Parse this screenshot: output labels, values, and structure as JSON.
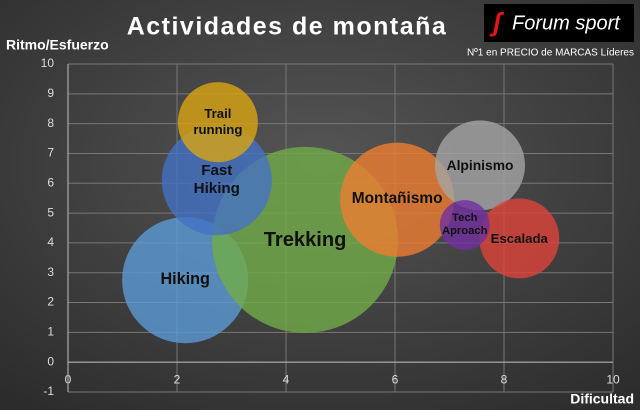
{
  "chart_data": {
    "type": "bubble",
    "title": "Actividades de montaña",
    "brand": "Forum sport",
    "tagline": "Nº1 en PRECIO de MARCAS Líderes",
    "x_label": "Dificultad",
    "y_label": "Ritmo/Esfuerzo",
    "xlim": [
      0,
      10
    ],
    "xticks": [
      0,
      2,
      4,
      6,
      8,
      10
    ],
    "ylim": [
      -1,
      10
    ],
    "yticks": [
      -1,
      0,
      1,
      2,
      3,
      4,
      5,
      6,
      7,
      8,
      9,
      10
    ],
    "grid": true,
    "series": [
      {
        "name": "Hiking",
        "color": "#5b9bd5",
        "x": 2.15,
        "y": 2.75,
        "size": 46
      },
      {
        "name": "Trekking",
        "color": "#70ad47",
        "x": 4.35,
        "y": 4.1,
        "size": 100
      },
      {
        "name": "Fast Hiking",
        "color": "#4472c4",
        "x": 2.73,
        "y": 6.1,
        "size": 35
      },
      {
        "name": "Trail running",
        "color": "#d9a512",
        "x": 2.75,
        "y": 8.05,
        "size": 18.5
      },
      {
        "name": "Montañismo",
        "color": "#ed7d31",
        "x": 6.04,
        "y": 5.45,
        "size": 37.6
      },
      {
        "name": "Alpinismo",
        "color": "#a5a5a5",
        "x": 7.56,
        "y": 6.6,
        "size": 23.4
      },
      {
        "name": "Escalada",
        "color": "#e0443a",
        "x": 8.28,
        "y": 4.15,
        "size": 18.5
      },
      {
        "name": "Tech Aproach",
        "color": "#7030a0",
        "x": 7.28,
        "y": 4.6,
        "size": 7.2
      }
    ]
  }
}
